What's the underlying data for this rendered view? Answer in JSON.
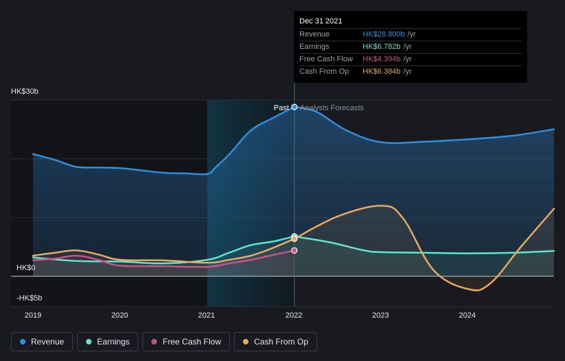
{
  "chart_data": {
    "type": "area",
    "x_ticks": [
      "2019",
      "2020",
      "2021",
      "2022",
      "2023",
      "2024"
    ],
    "y_tick_labels": [
      {
        "value": 30,
        "label": "HK$30b"
      },
      {
        "value": 0,
        "label": "HK$0"
      },
      {
        "value": -5,
        "label": "-HK$5b"
      }
    ],
    "ylim": [
      -5,
      30
    ],
    "xlim": [
      2019.0,
      2024.98
    ],
    "grid": true,
    "region_labels": {
      "past": "Past",
      "forecast": "Analysts Forecasts"
    },
    "divider_x": 2022.0,
    "highlight_start": 2021.0,
    "series": [
      {
        "name": "Revenue",
        "color": "#2e8fe3",
        "past": [
          [
            2019.0,
            20.8
          ],
          [
            2019.25,
            19.8
          ],
          [
            2019.5,
            18.6
          ],
          [
            2019.75,
            18.5
          ],
          [
            2020.0,
            18.4
          ],
          [
            2020.25,
            18.0
          ],
          [
            2020.5,
            17.6
          ],
          [
            2020.75,
            17.5
          ],
          [
            2021.0,
            17.4
          ],
          [
            2021.1,
            18.6
          ],
          [
            2021.25,
            20.7
          ],
          [
            2021.5,
            24.8
          ],
          [
            2021.75,
            26.9
          ],
          [
            2022.0,
            28.8
          ]
        ],
        "forecast": [
          [
            2022.0,
            28.8
          ],
          [
            2022.25,
            28.0
          ],
          [
            2022.6,
            24.8
          ],
          [
            2023.0,
            22.8
          ],
          [
            2023.5,
            22.9
          ],
          [
            2024.0,
            23.3
          ],
          [
            2024.5,
            23.9
          ],
          [
            2024.98,
            25.0
          ]
        ]
      },
      {
        "name": "Earnings",
        "color": "#5ee6cf",
        "past": [
          [
            2019.0,
            3.2
          ],
          [
            2019.5,
            2.6
          ],
          [
            2020.0,
            2.5
          ],
          [
            2020.5,
            2.2
          ],
          [
            2021.0,
            2.8
          ],
          [
            2021.25,
            4.0
          ],
          [
            2021.5,
            5.3
          ],
          [
            2021.75,
            5.9
          ],
          [
            2022.0,
            6.78
          ]
        ],
        "forecast": [
          [
            2022.0,
            6.78
          ],
          [
            2022.4,
            5.8
          ],
          [
            2022.8,
            4.4
          ],
          [
            2023.0,
            4.1
          ],
          [
            2023.5,
            4.0
          ],
          [
            2024.0,
            3.9
          ],
          [
            2024.5,
            4.0
          ],
          [
            2024.98,
            4.3
          ]
        ]
      },
      {
        "name": "Free Cash Flow",
        "color": "#cc4f90",
        "past": [
          [
            2019.0,
            2.7
          ],
          [
            2019.25,
            3.0
          ],
          [
            2019.5,
            3.5
          ],
          [
            2019.75,
            2.8
          ],
          [
            2020.0,
            1.8
          ],
          [
            2020.5,
            1.7
          ],
          [
            2021.0,
            1.6
          ],
          [
            2021.25,
            2.2
          ],
          [
            2021.5,
            2.8
          ],
          [
            2021.75,
            3.6
          ],
          [
            2022.0,
            4.39
          ]
        ],
        "forecast": []
      },
      {
        "name": "Cash From Op",
        "color": "#e9a95e",
        "past": [
          [
            2019.0,
            3.5
          ],
          [
            2019.25,
            4.0
          ],
          [
            2019.5,
            4.4
          ],
          [
            2019.75,
            3.7
          ],
          [
            2020.0,
            2.8
          ],
          [
            2020.5,
            2.7
          ],
          [
            2021.0,
            2.3
          ],
          [
            2021.25,
            2.8
          ],
          [
            2021.5,
            3.5
          ],
          [
            2021.75,
            4.8
          ],
          [
            2022.0,
            6.38
          ]
        ],
        "forecast": [
          [
            2022.0,
            6.38
          ],
          [
            2022.5,
            10.2
          ],
          [
            2023.0,
            12.0
          ],
          [
            2023.25,
            9.8
          ],
          [
            2023.6,
            1.0
          ],
          [
            2024.0,
            -2.2
          ],
          [
            2024.25,
            -1.2
          ],
          [
            2024.6,
            5.0
          ],
          [
            2024.98,
            11.5
          ]
        ]
      }
    ]
  },
  "tooltip": {
    "date": "Dec 31 2021",
    "unit": "/yr",
    "rows": [
      {
        "name": "Revenue",
        "value": "HK$28.800b",
        "color": "#2e8fe3"
      },
      {
        "name": "Earnings",
        "value": "HK$6.782b",
        "color": "#5ee6cf"
      },
      {
        "name": "Free Cash Flow",
        "value": "HK$4.394b",
        "color": "#cc4f90"
      },
      {
        "name": "Cash From Op",
        "value": "HK$6.384b",
        "color": "#e9a95e"
      }
    ]
  },
  "legend": [
    {
      "label": "Revenue",
      "color": "#2e8fe3"
    },
    {
      "label": "Earnings",
      "color": "#5ee6cf"
    },
    {
      "label": "Free Cash Flow",
      "color": "#cc4f90"
    },
    {
      "label": "Cash From Op",
      "color": "#e9a95e"
    }
  ]
}
